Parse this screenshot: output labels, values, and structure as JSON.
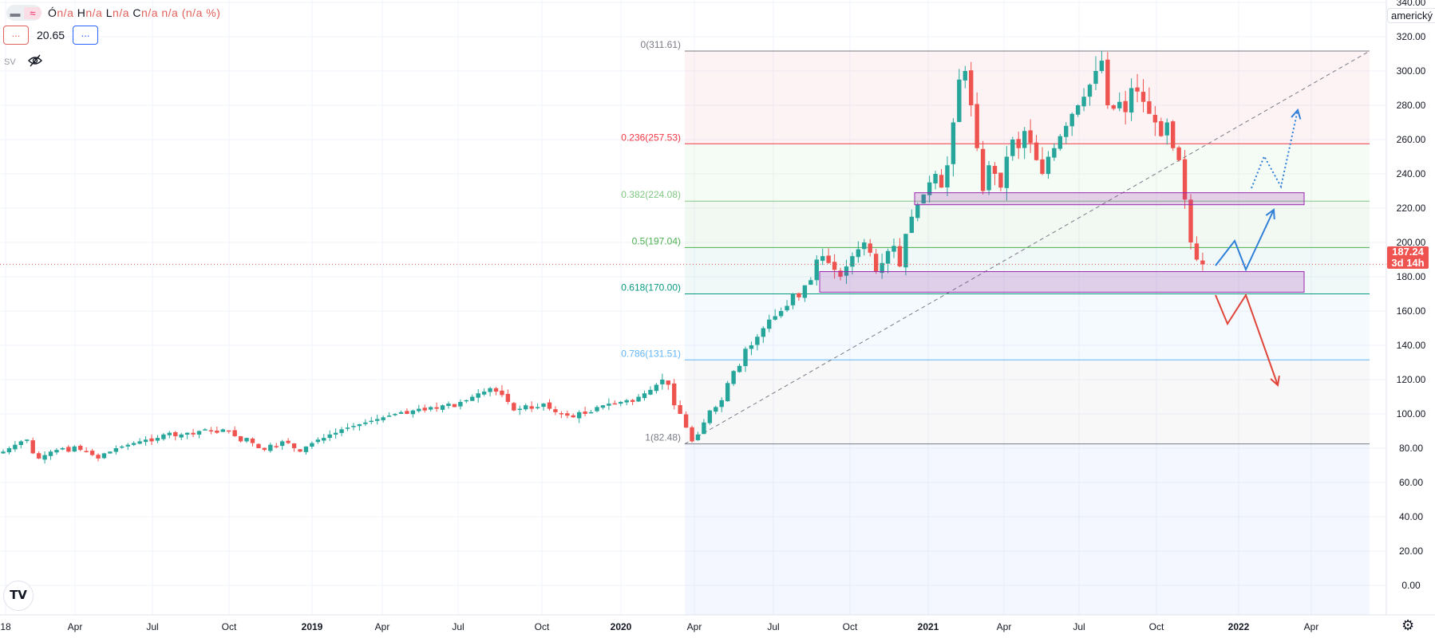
{
  "legend": {
    "ohlc": [
      {
        "k": "Ó",
        "v": "n/a"
      },
      {
        "k": "H",
        "v": "n/a"
      },
      {
        "k": "L",
        "v": "n/a"
      },
      {
        "k": "C",
        "v": "n/a"
      }
    ],
    "change": "n/a (n/a %)",
    "indicator_value": "20.65",
    "btn_label": "...",
    "sv_label": "SV",
    "icons": [
      "minus-icon",
      "wave-icon",
      "eye-off-icon"
    ]
  },
  "axis": {
    "currency_dropdown": "americký",
    "top_partial_label": "340.00",
    "price_labels": [
      "320.00",
      "300.00",
      "280.00",
      "260.00",
      "240.00",
      "220.00",
      "200.00",
      "180.00",
      "160.00",
      "140.00",
      "120.00",
      "100.00",
      "80.00",
      "60.00",
      "40.00",
      "20.00",
      "0.00"
    ],
    "current_price": "187.24",
    "countdown": "3d 14h",
    "time_labels": [
      {
        "t": "18",
        "bold": false
      },
      {
        "t": "Apr",
        "bold": false
      },
      {
        "t": "Jul",
        "bold": false
      },
      {
        "t": "Oct",
        "bold": false
      },
      {
        "t": "2019",
        "bold": true
      },
      {
        "t": "Apr",
        "bold": false
      },
      {
        "t": "Jul",
        "bold": false
      },
      {
        "t": "Oct",
        "bold": false
      },
      {
        "t": "2020",
        "bold": true
      },
      {
        "t": "Apr",
        "bold": false
      },
      {
        "t": "Jul",
        "bold": false
      },
      {
        "t": "Oct",
        "bold": false
      },
      {
        "t": "2021",
        "bold": true
      },
      {
        "t": "Apr",
        "bold": false
      },
      {
        "t": "Jul",
        "bold": false
      },
      {
        "t": "Oct",
        "bold": false
      },
      {
        "t": "2022",
        "bold": true
      },
      {
        "t": "Apr",
        "bold": false
      }
    ]
  },
  "logo_text": "TV",
  "colors": {
    "up": "#26a69a",
    "down": "#ef5350",
    "grid": "#f0f3fa"
  },
  "chart_data": {
    "type": "candlestick",
    "interval": "weekly",
    "start": "2018-01",
    "closes": [
      78,
      80,
      82,
      84,
      85,
      77,
      74,
      76,
      78,
      79,
      80,
      78,
      81,
      79,
      78,
      76,
      74,
      77,
      78,
      80,
      81,
      82,
      83,
      84,
      85,
      84,
      86,
      88,
      89,
      87,
      88,
      89,
      88,
      90,
      91,
      90,
      89,
      91,
      90,
      87,
      84,
      86,
      83,
      80,
      79,
      82,
      81,
      84,
      83,
      80,
      78,
      81,
      83,
      85,
      86,
      88,
      89,
      91,
      92,
      93,
      94,
      95,
      96,
      97,
      98,
      99,
      100,
      101,
      100,
      102,
      103,
      102,
      104,
      103,
      105,
      106,
      104,
      107,
      108,
      110,
      112,
      113,
      115,
      113,
      111,
      107,
      102,
      103,
      105,
      103,
      104,
      106,
      103,
      101,
      100,
      99,
      98,
      101,
      100,
      101,
      104,
      105,
      106,
      106,
      107,
      108,
      107,
      110,
      112,
      114,
      117,
      120,
      117,
      105,
      100,
      92,
      84,
      88,
      95,
      102,
      104,
      108,
      118,
      125,
      128,
      138,
      140,
      145,
      150,
      155,
      157,
      160,
      163,
      170,
      168,
      175,
      178,
      190,
      192,
      188,
      184,
      180,
      186,
      192,
      196,
      200,
      194,
      183,
      188,
      195,
      198,
      186,
      205,
      215,
      222,
      228,
      235,
      240,
      232,
      245,
      270,
      295,
      300,
      280,
      255,
      230,
      245,
      240,
      232,
      250,
      260,
      255,
      265,
      258,
      248,
      240,
      250,
      255,
      262,
      268,
      275,
      280,
      285,
      292,
      300,
      306,
      280,
      278,
      282,
      276,
      290,
      288,
      282,
      275,
      270,
      262,
      270,
      255,
      248,
      225,
      200,
      190,
      187.24
    ],
    "fibonacci": {
      "levels": [
        {
          "ratio": "0",
          "price": 311.61,
          "label": "0(311.61)",
          "color": "#787b86",
          "fill": "rgba(242,54,69,0.06)"
        },
        {
          "ratio": "0.236",
          "price": 257.53,
          "label": "0.236(257.53)",
          "color": "#f23645",
          "fill": "rgba(129,199,132,0.08)"
        },
        {
          "ratio": "0.382",
          "price": 224.08,
          "label": "0.382(224.08)",
          "color": "#81c784",
          "fill": "rgba(76,175,80,0.07)"
        },
        {
          "ratio": "0.5",
          "price": 197.04,
          "label": "0.5(197.04)",
          "color": "#4caf50",
          "fill": "rgba(8,153,129,0.06)"
        },
        {
          "ratio": "0.618",
          "price": 170.0,
          "label": "0.618(170.00)",
          "color": "#089981",
          "fill": "rgba(100,181,246,0.07)"
        },
        {
          "ratio": "0.786",
          "price": 131.51,
          "label": "0.786(131.51)",
          "color": "#64b5f6",
          "fill": "rgba(120,123,134,0.05)"
        },
        {
          "ratio": "1",
          "price": 82.48,
          "label": "1(82.48)",
          "color": "#787b86",
          "fill": "rgba(41,98,255,0.05)"
        }
      ]
    },
    "zones": [
      {
        "name": "upper-support-zone",
        "top": 229,
        "bottom": 222
      },
      {
        "name": "lower-support-zone",
        "top": 183,
        "bottom": 171
      }
    ],
    "ylim": [
      0,
      320
    ]
  }
}
